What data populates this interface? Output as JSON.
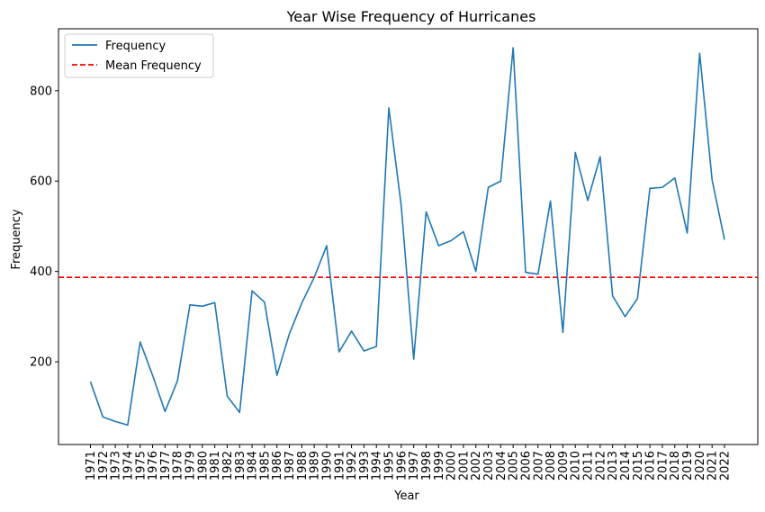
{
  "chart_data": {
    "type": "line",
    "title": "Year Wise Frequency of Hurricanes",
    "xlabel": "Year",
    "ylabel": "Frequency",
    "categories": [
      "1971",
      "1972",
      "1973",
      "1974",
      "1975",
      "1976",
      "1977",
      "1978",
      "1979",
      "1980",
      "1981",
      "1982",
      "1983",
      "1984",
      "1985",
      "1986",
      "1987",
      "1988",
      "1989",
      "1990",
      "1991",
      "1992",
      "1993",
      "1994",
      "1995",
      "1996",
      "1997",
      "1998",
      "1999",
      "2000",
      "2001",
      "2002",
      "2003",
      "2004",
      "2005",
      "2006",
      "2007",
      "2008",
      "2009",
      "2010",
      "2011",
      "2012",
      "2013",
      "2014",
      "2015",
      "2016",
      "2017",
      "2018",
      "2019",
      "2020",
      "2021",
      "2022"
    ],
    "series": [
      {
        "name": "Frequency",
        "color": "#1f77b4",
        "values": [
          156,
          78,
          68,
          60,
          244,
          170,
          90,
          158,
          326,
          323,
          331,
          124,
          88,
          357,
          332,
          170,
          262,
          330,
          387,
          457,
          222,
          268,
          224,
          234,
          762,
          545,
          206,
          532,
          457,
          468,
          488,
          400,
          586,
          600,
          895,
          398,
          394,
          556,
          265,
          663,
          557,
          654,
          346,
          300,
          340,
          584,
          586,
          607,
          485,
          883,
          603,
          470
        ]
      }
    ],
    "reference_lines": [
      {
        "name": "Mean Frequency",
        "value": 387,
        "color": "#ff0000",
        "style": "dashed"
      }
    ],
    "yticks": [
      200,
      400,
      600,
      800
    ],
    "ylim": [
      17,
      937
    ],
    "grid": false,
    "legend": "top-left"
  }
}
